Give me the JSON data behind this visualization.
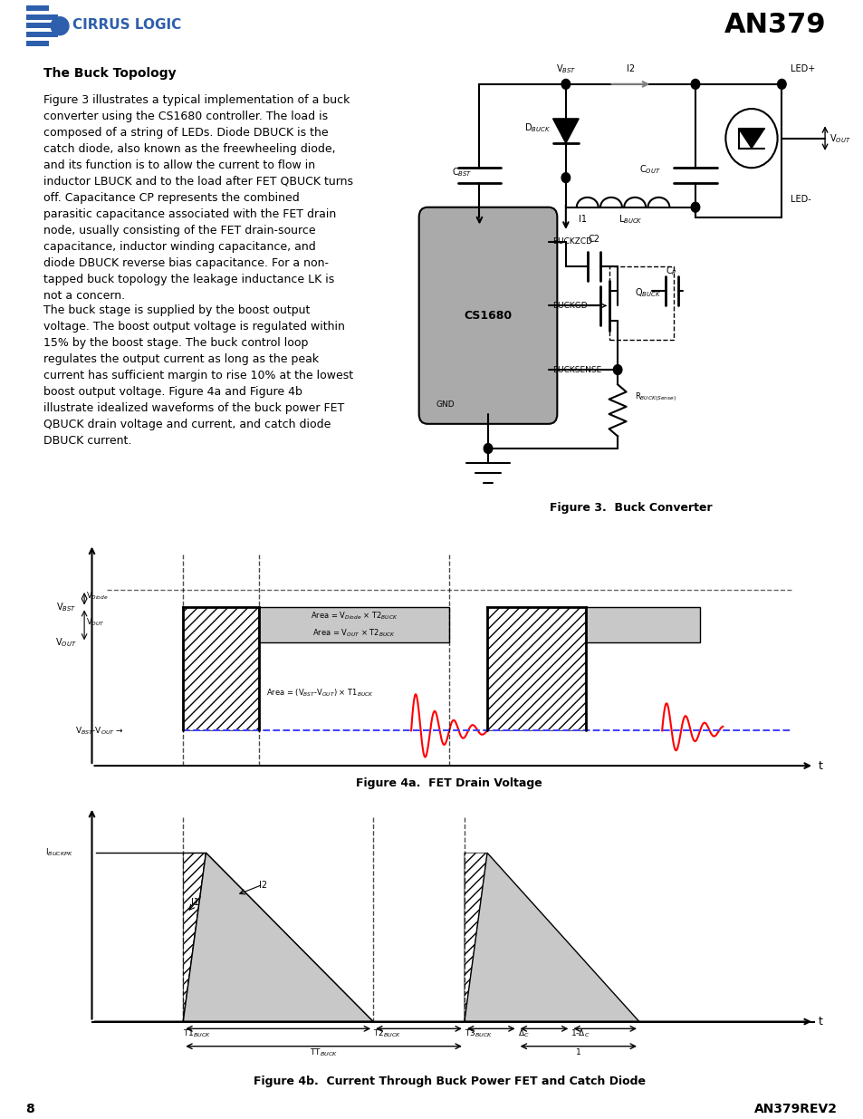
{
  "page_title": "AN379",
  "page_number": "8",
  "page_rev": "AN379REV2",
  "header_bar_color": "#808080",
  "footer_bar_color": "#000000",
  "section_title": "The Buck Topology",
  "body_text": [
    "Figure 3 illustrates a typical implementation of a buck converter using the CS1680 controller. The load is composed of a string of LEDs. Diode D",
    "BUCK",
    " is the catch diode, also known as the freewheeling diode, and its function is to allow the current to flow in inductor L",
    "BUCK",
    " and to the load after FET Q",
    "BUCK",
    " turns off. Capacitance C",
    "P",
    " represents the combined parasitic capacitance associated with the FET drain node, usually consisting of the FET drain-source capacitance, inductor winding capacitance, and diode D",
    "BUCK",
    " reverse bias capacitance. For a non-tapped buck topology the leakage inductance L",
    "K",
    " is not a concern."
  ],
  "body_text2": [
    "The buck stage is supplied by the boost output voltage. The boost output voltage is regulated within 15% by the boost stage. The buck control loop regulates the output current as long as the peak current has sufficient margin to rise 10% at the lowest boost output voltage. Figure 4a and Figure 4b illustrate idealized waveforms of the buck power FET Q",
    "BUCK",
    " drain voltage and current, and catch diode D",
    "BUCK",
    " current."
  ],
  "fig3_caption": "Figure 3.  Buck Converter",
  "fig4a_caption": "Figure 4a.  FET Drain Voltage",
  "fig4b_caption": "Figure 4b.  Current Through Buck Power FET and Catch Diode",
  "blue_color": "#2E5FAC",
  "red_color": "#FF0000",
  "gray_fill": "#AAAAAA",
  "light_gray": "#C8C8C8",
  "hatch_color": "#000000",
  "blue_dashed": "#4444FF"
}
